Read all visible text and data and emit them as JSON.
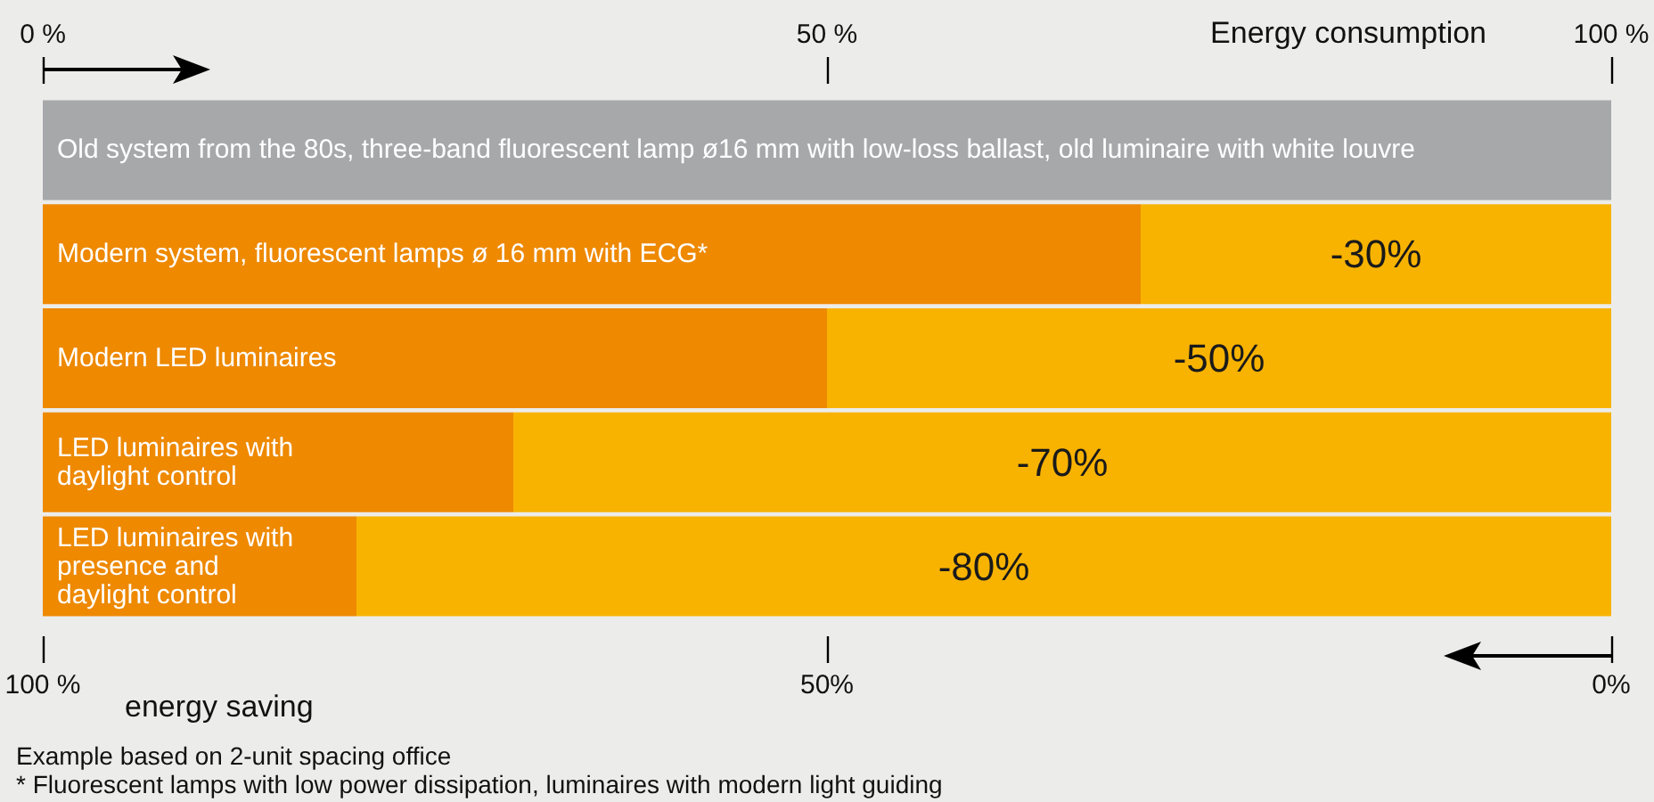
{
  "chart_data": {
    "type": "bar",
    "orientation": "horizontal",
    "stacked": true,
    "categories": [
      "Old system from the 80s, three-band fluorescent lamp ø16 mm with low-loss ballast, old luminaire with white louvre",
      "Modern system, fluorescent lamps ø 16 mm with ECG*",
      "Modern LED luminaires",
      "LED luminaires with\ndaylight control",
      "LED luminaires with\npresence and\ndaylight control"
    ],
    "series": [
      {
        "colors": [
          "#a7a8aa",
          "#ee8900",
          "#ee8900",
          "#ee8900",
          "#ee8900"
        ],
        "values": [
          100,
          70,
          50,
          30,
          20
        ]
      },
      {
        "color": "#f8b300",
        "values": [
          null,
          30,
          50,
          70,
          80
        ]
      }
    ],
    "xlim": [
      0,
      100
    ],
    "xticks": [
      {
        "value": 0,
        "label": "0 %"
      },
      {
        "value": 50,
        "label": "50 %"
      },
      {
        "value": 100,
        "label": "100 %"
      }
    ],
    "xlabel": "Energy consumption",
    "x2lim": [
      100,
      0
    ],
    "x2ticks": [
      {
        "value": 100,
        "label": "100 %"
      },
      {
        "value": 50,
        "label": "50%"
      },
      {
        "value": 0,
        "label": "0%"
      }
    ],
    "x2label": "energy saving",
    "grid": false,
    "annotations": [
      {
        "text": "-30%",
        "y": "Modern system, fluorescent lamps ø 16 mm with ECG*"
      },
      {
        "text": "-50%",
        "y": "Modern LED luminaires"
      },
      {
        "text": "-70%",
        "y": "LED luminaires with\ndaylight control"
      },
      {
        "text": "-80%",
        "y": "LED luminaires with\npresence and\ndaylight control"
      },
      "Example based on 2-unit spacing office",
      "* Fluorescent lamps with low power dissipation, luminaires with modern light guiding"
    ]
  }
}
